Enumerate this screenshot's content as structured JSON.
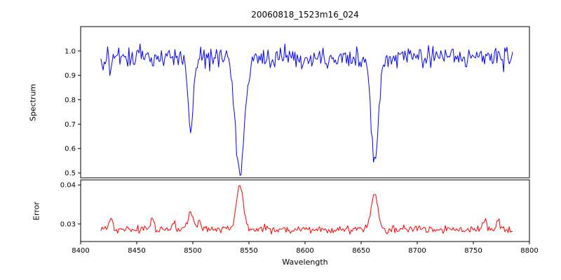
{
  "chart_data": {
    "type": "line",
    "title": "20060818_1523m16_024",
    "xlabel": "Wavelength",
    "xlim": [
      8400,
      8800
    ],
    "xticks": [
      8400,
      8450,
      8500,
      8550,
      8600,
      8650,
      8700,
      8750,
      8800
    ],
    "xtick_labels": [
      "8400",
      "8450",
      "8500",
      "8550",
      "8600",
      "8650",
      "8700",
      "8750",
      "8800"
    ],
    "x_sampling": {
      "start": 8418,
      "end": 8785,
      "step": 1
    },
    "noise_seed": 20060818,
    "grid": false,
    "legend": "none",
    "panels": [
      {
        "name": "spectrum",
        "ylabel": "Spectrum",
        "color": "#0000ff",
        "ylim": [
          0.48,
          1.1
        ],
        "yticks": [
          0.5,
          0.6,
          0.7,
          0.8,
          0.9,
          1.0
        ],
        "ytick_labels": [
          "0.5",
          "0.6",
          "0.7",
          "0.8",
          "0.9",
          "1.0"
        ],
        "baseline": 0.975,
        "noise_sigma": 0.021,
        "features": [
          {
            "center": 8427,
            "amplitude": -0.045,
            "width": 1.5
          },
          {
            "center": 8464,
            "amplitude": -0.04,
            "width": 1.5
          },
          {
            "center": 8498,
            "amplitude": -0.28,
            "width": 2.6
          },
          {
            "center": 8542,
            "amplitude": -0.475,
            "width": 4.2
          },
          {
            "center": 8662,
            "amplitude": -0.42,
            "width": 3.4
          }
        ]
      },
      {
        "name": "error",
        "ylabel": "Error",
        "color": "#ff0000",
        "ylim": [
          0.0255,
          0.0413
        ],
        "yticks": [
          0.03,
          0.04
        ],
        "ytick_labels": [
          "0.03",
          "0.04"
        ],
        "baseline": 0.0286,
        "noise_sigma": 0.00045,
        "features": [
          {
            "center": 8427,
            "amplitude": 0.0032,
            "width": 1.5
          },
          {
            "center": 8464,
            "amplitude": 0.003,
            "width": 1.5
          },
          {
            "center": 8483,
            "amplitude": 0.0018,
            "width": 1.5
          },
          {
            "center": 8498,
            "amplitude": 0.0048,
            "width": 2.2
          },
          {
            "center": 8506,
            "amplitude": 0.002,
            "width": 1.5
          },
          {
            "center": 8542,
            "amplitude": 0.0115,
            "width": 3.0
          },
          {
            "center": 8662,
            "amplitude": 0.0092,
            "width": 3.0
          },
          {
            "center": 8760,
            "amplitude": 0.002,
            "width": 1.8
          },
          {
            "center": 8772,
            "amplitude": 0.0025,
            "width": 1.5
          }
        ]
      }
    ]
  }
}
